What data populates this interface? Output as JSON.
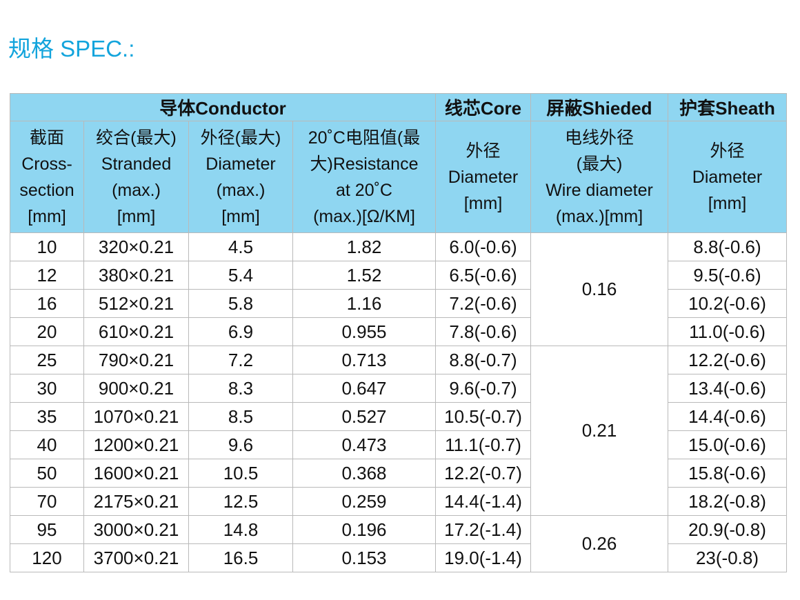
{
  "title": "规格 SPEC.:",
  "table": {
    "group_headers": [
      "导体Conductor",
      "线芯Core",
      "屏蔽Shieded",
      "护套Sheath"
    ],
    "column_headers": [
      [
        "截面",
        "Cross-",
        "section",
        "[mm]"
      ],
      [
        "绞合(最大)",
        "Stranded",
        "(max.)",
        "[mm]"
      ],
      [
        "外径(最大)",
        "Diameter",
        "(max.)",
        "[mm]"
      ],
      [
        "20˚C电阻值(最",
        "大)Resistance",
        "at 20˚C",
        "(max.)[Ω/KM]"
      ],
      [
        "外径",
        "Diameter",
        "[mm]"
      ],
      [
        "电线外径",
        "(最大)",
        "Wire diameter",
        "(max.)[mm]"
      ],
      [
        "外径",
        "Diameter",
        "[mm]"
      ]
    ],
    "rows": [
      [
        "10",
        "320×0.21",
        "4.5",
        "1.82",
        "6.0(-0.6)",
        "0.16",
        "8.8(-0.6)"
      ],
      [
        "12",
        "380×0.21",
        "5.4",
        "1.52",
        "6.5(-0.6)",
        null,
        "9.5(-0.6)"
      ],
      [
        "16",
        "512×0.21",
        "5.8",
        "1.16",
        "7.2(-0.6)",
        null,
        "10.2(-0.6)"
      ],
      [
        "20",
        "610×0.21",
        "6.9",
        "0.955",
        "7.8(-0.6)",
        null,
        "11.0(-0.6)"
      ],
      [
        "25",
        "790×0.21",
        "7.2",
        "0.713",
        "8.8(-0.7)",
        "0.21",
        "12.2(-0.6)"
      ],
      [
        "30",
        "900×0.21",
        "8.3",
        "0.647",
        "9.6(-0.7)",
        null,
        "13.4(-0.6)"
      ],
      [
        "35",
        "1070×0.21",
        "8.5",
        "0.527",
        "10.5(-0.7)",
        null,
        "14.4(-0.6)"
      ],
      [
        "40",
        "1200×0.21",
        "9.6",
        "0.473",
        "11.1(-0.7)",
        null,
        "15.0(-0.6)"
      ],
      [
        "50",
        "1600×0.21",
        "10.5",
        "0.368",
        "12.2(-0.7)",
        null,
        "15.8(-0.6)"
      ],
      [
        "70",
        "2175×0.21",
        "12.5",
        "0.259",
        "14.4(-1.4)",
        null,
        "18.2(-0.8)"
      ],
      [
        "95",
        "3000×0.21",
        "14.8",
        "0.196",
        "17.2(-1.4)",
        "0.26",
        "20.9(-0.8)"
      ],
      [
        "120",
        "3700×0.21",
        "16.5",
        "0.153",
        "19.0(-1.4)",
        null,
        "23(-0.8)"
      ]
    ]
  }
}
